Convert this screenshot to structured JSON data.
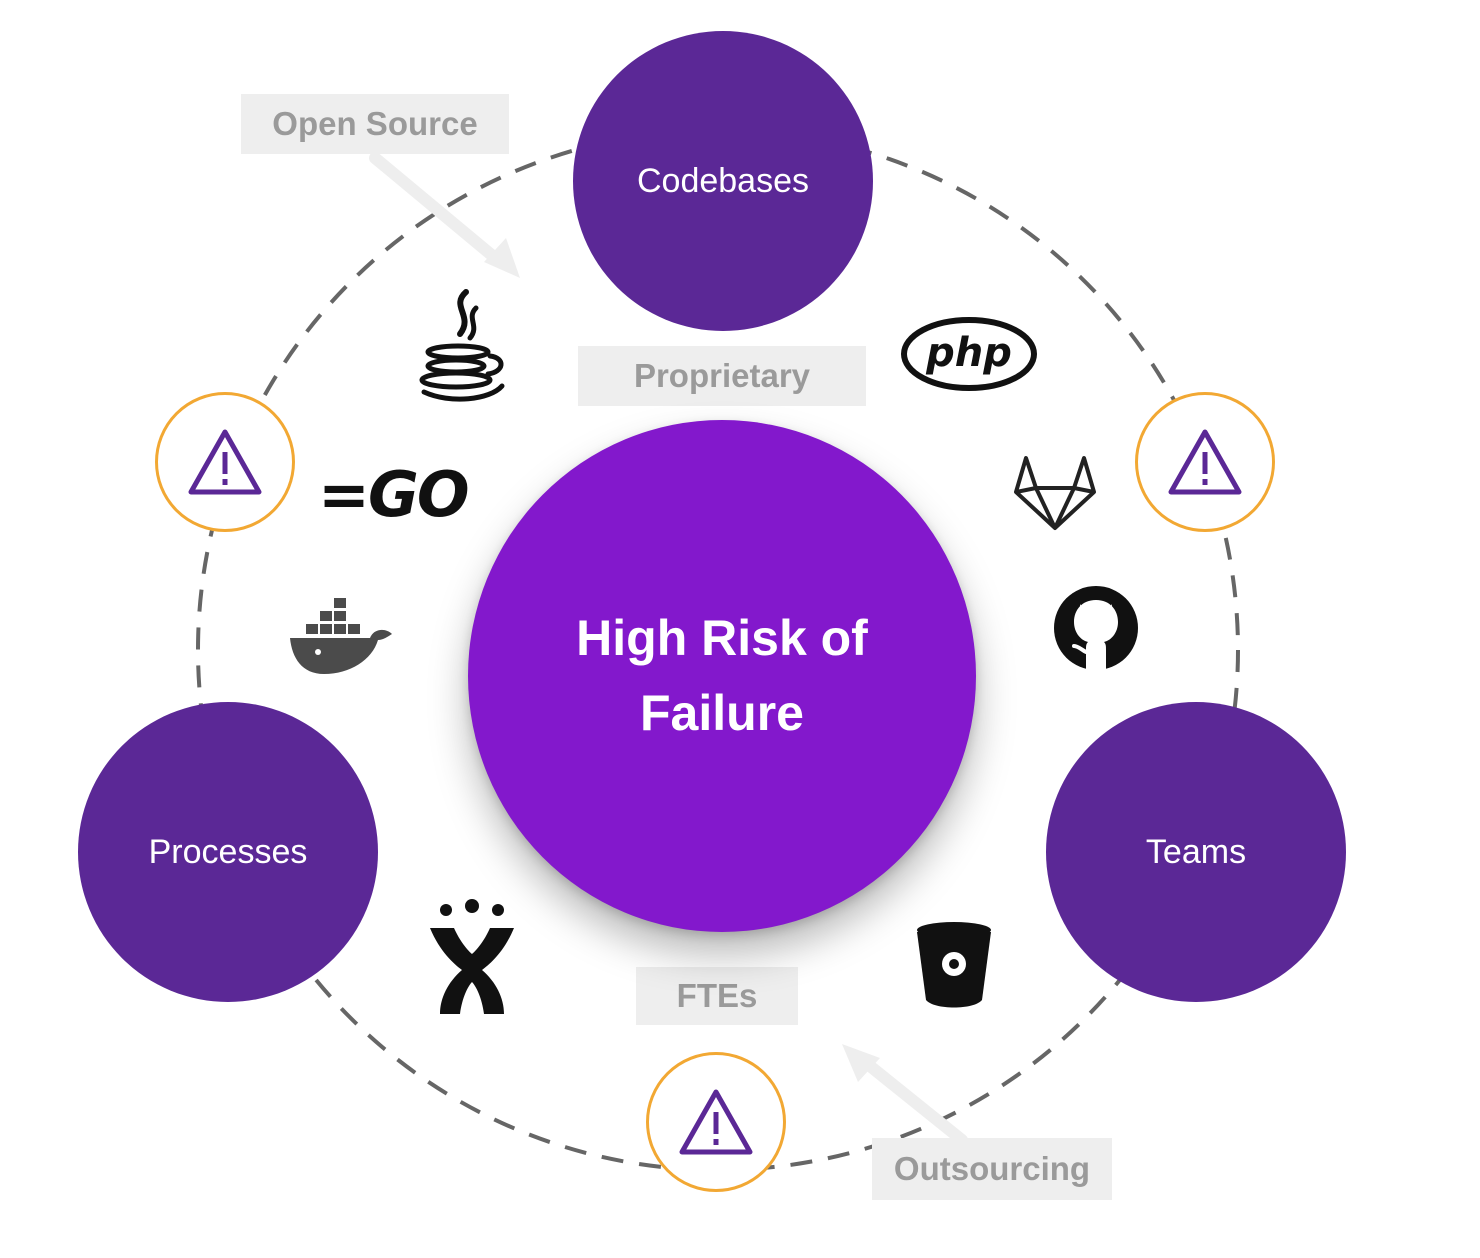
{
  "center": {
    "label": "High Risk of Failure"
  },
  "nodes": {
    "top": {
      "label": "Codebases"
    },
    "left": {
      "label": "Processes"
    },
    "right": {
      "label": "Teams"
    }
  },
  "tags": {
    "open_source": "Open Source",
    "proprietary": "Proprietary",
    "ftes": "FTEs",
    "outsourcing": "Outsourcing"
  },
  "logos": {
    "php": "php",
    "go": "=GO"
  },
  "colors": {
    "center_fill": "#8318cc",
    "node_fill": "#5b2896",
    "warning_ring": "#f2a833",
    "warning_icon": "#5b2896",
    "tag_bg": "#eeeeee",
    "tag_text": "#9a9a9a",
    "dashed_ring": "#666666"
  },
  "icons": [
    "warning-icon",
    "java-icon",
    "go-icon",
    "docker-icon",
    "php-icon",
    "gitlab-icon",
    "github-icon",
    "jira-icon",
    "bitbucket-icon",
    "arrow-icon"
  ]
}
